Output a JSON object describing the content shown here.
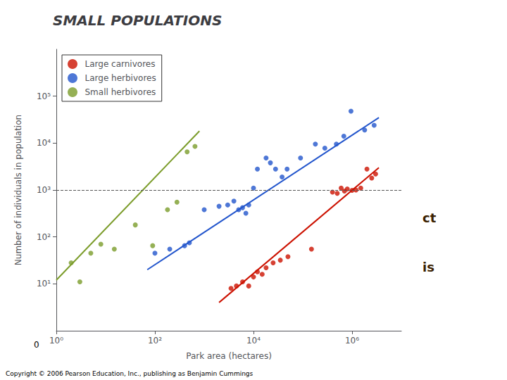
{
  "chart_data": {
    "type": "scatter",
    "title": "SMALL POPULATIONS",
    "x_label": "Park area (hectares)",
    "y_label": "Number of individuals in population",
    "log": true,
    "xlim": [
      1,
      10000000
    ],
    "ylim": [
      1,
      1000000
    ],
    "xticks": [
      {
        "value": 1,
        "label": "10⁰"
      },
      {
        "value": 100,
        "label": "10²"
      },
      {
        "value": 10000,
        "label": "10⁴"
      },
      {
        "value": 1000000,
        "label": "10⁶"
      }
    ],
    "yticks": [
      {
        "value": 10,
        "label": "10¹"
      },
      {
        "value": 100,
        "label": "10²"
      },
      {
        "value": 1000,
        "label": "10³"
      },
      {
        "value": 10000,
        "label": "10⁴"
      },
      {
        "value": 100000,
        "label": "10⁵"
      }
    ],
    "grid": false,
    "legend": "upper left",
    "series": [
      {
        "name": "Large carnivores",
        "color": "#CC1100",
        "marker": "circle",
        "x": [
          3500,
          4500,
          6000,
          8000,
          10000,
          12000,
          15000,
          18000,
          25000,
          35000,
          50000,
          150000,
          400000,
          500000,
          600000,
          700000,
          800000,
          1000000,
          1200000,
          1500000,
          2000000,
          2500000,
          3000000
        ],
        "values": [
          8,
          9,
          11,
          9,
          14,
          18,
          16,
          22,
          28,
          32,
          38,
          55,
          900,
          850,
          1100,
          950,
          1050,
          980,
          1000,
          1100,
          2800,
          1800,
          2200
        ],
        "trend_x": [
          2000,
          3500000
        ],
        "trend_y": [
          4,
          3000
        ]
      },
      {
        "name": "Large herbivores",
        "color": "#2255CC",
        "marker": "circle",
        "x": [
          100,
          200,
          400,
          500,
          1000,
          2000,
          3000,
          4000,
          5000,
          6000,
          7000,
          8000,
          10000,
          12000,
          18000,
          22000,
          28000,
          38000,
          48000,
          90000,
          180000,
          280000,
          480000,
          680000,
          950000,
          1800000,
          2800000
        ],
        "values": [
          45,
          55,
          65,
          75,
          380,
          450,
          480,
          580,
          380,
          420,
          320,
          480,
          1100,
          2800,
          4800,
          3800,
          2800,
          1900,
          2800,
          4800,
          9500,
          7800,
          9500,
          14000,
          48000,
          19000,
          24000
        ],
        "trend_x": [
          70,
          3500000
        ],
        "trend_y": [
          20,
          35000
        ]
      },
      {
        "name": "Small herbivores",
        "color": "#7B9C2A",
        "marker": "circle",
        "x": [
          2,
          3,
          5,
          8,
          15,
          40,
          90,
          180,
          280,
          450,
          650
        ],
        "values": [
          28,
          11,
          45,
          70,
          55,
          180,
          65,
          380,
          550,
          6500,
          8500
        ],
        "trend_x": [
          1,
          800
        ],
        "trend_y": [
          12,
          18000
        ]
      }
    ],
    "reference_lines": [
      {
        "y": 1000,
        "line_style": "dashed"
      }
    ],
    "annotations": [
      "0",
      "ct",
      "is",
      "Copyright © 2006 Pearson Education, Inc., publishing as Benjamin Cummings"
    ]
  }
}
